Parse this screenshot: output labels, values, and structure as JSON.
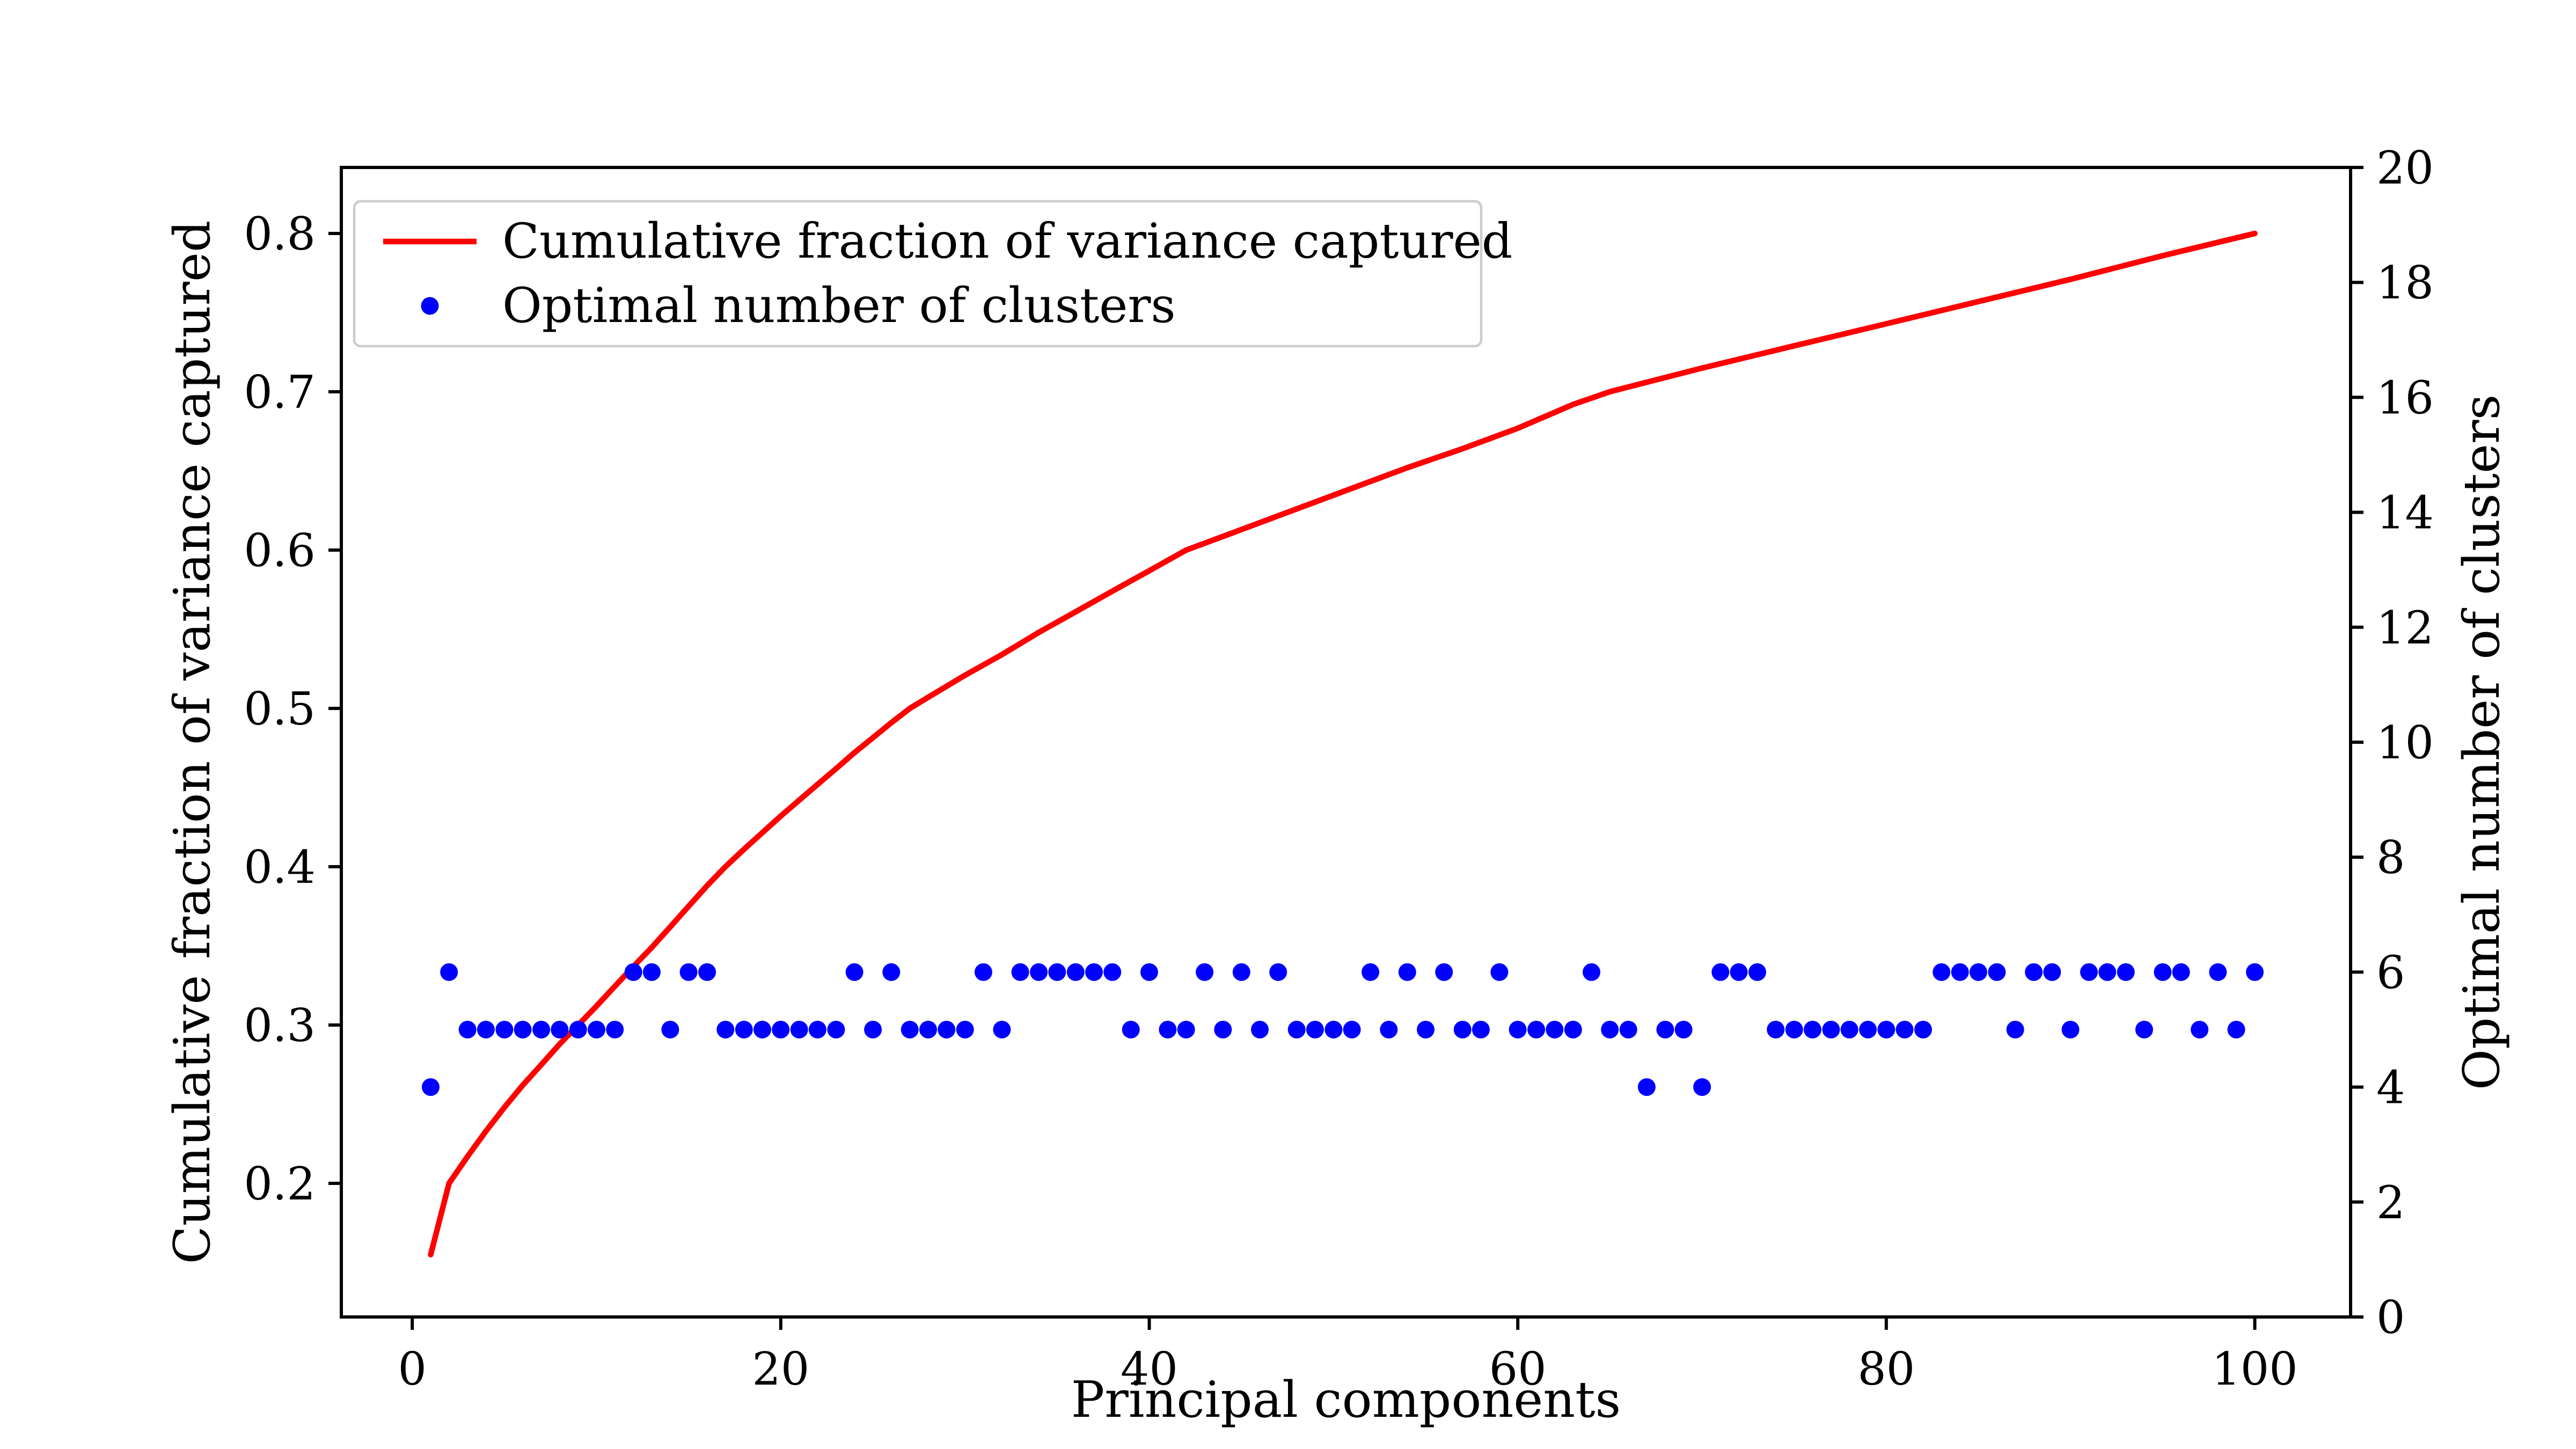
{
  "figure": {
    "background": "#ffffff",
    "frame_color": "#000000"
  },
  "chart_data": {
    "type": "line+scatter",
    "title": "",
    "xlabel": "Principal components",
    "ylabel_left": "Cumulative fraction of variance captured",
    "ylabel_right": "Optimal number of clusters",
    "x_ticks": [
      "0",
      "20",
      "40",
      "60",
      "80",
      "100"
    ],
    "y_ticks_left": [
      "0.2",
      "0.3",
      "0.4",
      "0.5",
      "0.6",
      "0.7",
      "0.8"
    ],
    "y_ticks_right": [
      "0",
      "2",
      "4",
      "6",
      "8",
      "10",
      "12",
      "14",
      "16",
      "18",
      "20"
    ],
    "xlim": [
      -3.85,
      105.2
    ],
    "ylim_left": [
      0.1156,
      0.8417
    ],
    "ylim_right": [
      0,
      20
    ],
    "grid": false,
    "legend": {
      "position": "upper-left",
      "entries": [
        {
          "label": "Cumulative fraction of variance captured",
          "type": "line",
          "color": "#ff0000"
        },
        {
          "label": "Optimal number of clusters",
          "type": "marker",
          "color": "#0000ff"
        }
      ]
    },
    "series": [
      {
        "name": "Cumulative fraction of variance captured",
        "type": "line",
        "axis": "left",
        "color": "#ff0000",
        "x": [
          1,
          2,
          3,
          4,
          5,
          6,
          7,
          8,
          9,
          10,
          11,
          12,
          13,
          14,
          15,
          16,
          17,
          18,
          19,
          20,
          21,
          22,
          23,
          24,
          25,
          26,
          27,
          28,
          30,
          32,
          34,
          36,
          38,
          40,
          42,
          45,
          48,
          51,
          54,
          57,
          60,
          63,
          65,
          70,
          75,
          80,
          85,
          90,
          95,
          100
        ],
        "y": [
          0.155,
          0.2,
          0.217,
          0.233,
          0.248,
          0.262,
          0.275,
          0.288,
          0.3,
          0.312,
          0.3245,
          0.337,
          0.349,
          0.362,
          0.375,
          0.388,
          0.4,
          0.411,
          0.4215,
          0.432,
          0.442,
          0.452,
          0.462,
          0.472,
          0.4815,
          0.491,
          0.5,
          0.507,
          0.521,
          0.534,
          0.548,
          0.561,
          0.574,
          0.587,
          0.6,
          0.613,
          0.626,
          0.639,
          0.652,
          0.664,
          0.677,
          0.692,
          0.7,
          0.715,
          0.729,
          0.743,
          0.757,
          0.771,
          0.786,
          0.8
        ]
      },
      {
        "name": "Optimal number of clusters",
        "type": "scatter",
        "axis": "right",
        "color": "#0000ff",
        "x_start": 1,
        "x_step": 1,
        "values": [
          4,
          6,
          5,
          5,
          5,
          5,
          5,
          5,
          5,
          5,
          5,
          6,
          6,
          5,
          6,
          6,
          5,
          5,
          5,
          5,
          5,
          5,
          5,
          6,
          5,
          6,
          5,
          5,
          5,
          5,
          6,
          5,
          6,
          6,
          6,
          6,
          6,
          6,
          5,
          6,
          5,
          5,
          6,
          5,
          6,
          5,
          6,
          5,
          5,
          5,
          5,
          6,
          5,
          6,
          5,
          6,
          5,
          5,
          6,
          5,
          5,
          5,
          5,
          6,
          5,
          5,
          4,
          5,
          5,
          4,
          6,
          6,
          6,
          5,
          5,
          5,
          5,
          5,
          5,
          5,
          5,
          5,
          6,
          6,
          6,
          6,
          5,
          6,
          6,
          5,
          6,
          6,
          6,
          5,
          6,
          6,
          5,
          6,
          5,
          6
        ]
      }
    ]
  }
}
